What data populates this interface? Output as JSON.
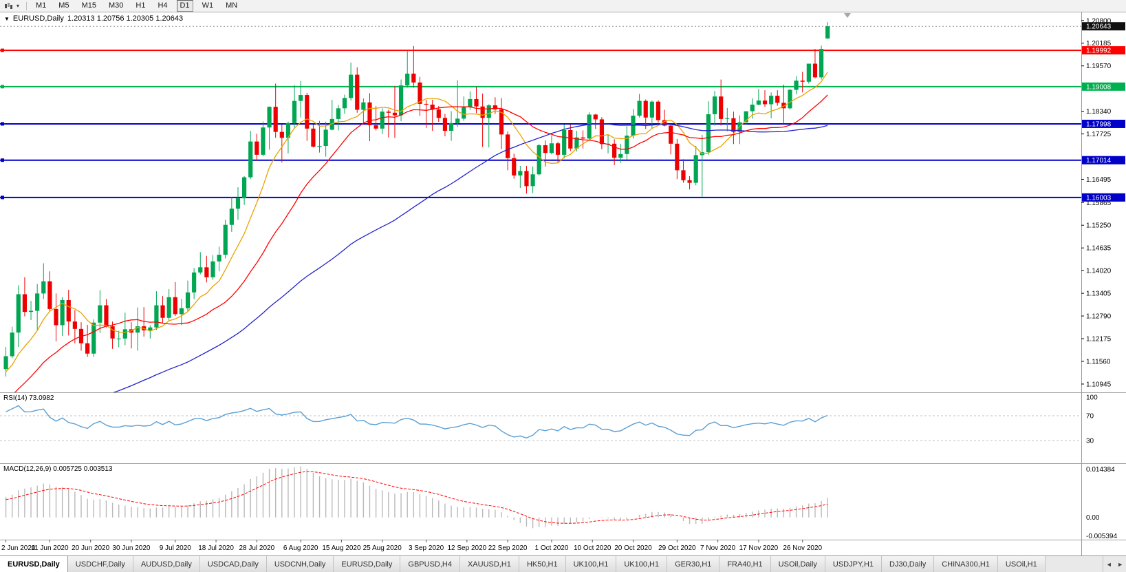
{
  "toolbar": {
    "timeframes": [
      "M1",
      "M5",
      "M15",
      "M30",
      "H1",
      "H4",
      "D1",
      "W1",
      "MN"
    ],
    "active_timeframe": "D1",
    "dropdown_icon": "▾"
  },
  "chart": {
    "menu_icon": "▼",
    "symbol_period": "EURUSD,Daily",
    "ohlc_text": "1.20313 1.20756 1.20305 1.20643",
    "rsi_label": "RSI(14) 73.0982",
    "macd_label": "MACD(12,26,9) 0.005725 0.003513"
  },
  "chart_data": {
    "type": "candlestick",
    "symbol": "EURUSD",
    "timeframe": "Daily",
    "ohlc": {
      "open": 1.20313,
      "high": 1.20756,
      "low": 1.20305,
      "close": 1.20643
    },
    "y_axis": {
      "v_max": 1.2102,
      "v_min": 1.1072,
      "ticks": [
        "1.20800",
        "1.20185",
        "1.19570",
        "1.18340",
        "1.17725",
        "1.16495",
        "1.15865",
        "1.15250",
        "1.14635",
        "1.14020",
        "1.13405",
        "1.12790",
        "1.12175",
        "1.11560",
        "1.10945"
      ]
    },
    "price_lines": [
      {
        "text": "1.20643",
        "value": 1.20643,
        "type": "current-price",
        "bg": "#111111",
        "line_color": "#999999",
        "line_style": "dotted",
        "line_width": 1
      },
      {
        "text": "1.19992",
        "value": 1.19992,
        "type": "horizontal-line",
        "bg": "#ff0000",
        "line_color": "#ff0000",
        "line_style": "solid",
        "line_width": 2
      },
      {
        "text": "1.19008",
        "value": 1.19008,
        "type": "horizontal-line",
        "bg": "#00b050",
        "line_color": "#00b050",
        "line_style": "solid",
        "line_width": 2
      },
      {
        "text": "1.17998",
        "value": 1.17998,
        "type": "horizontal-line",
        "bg": "#0000c8",
        "line_color": "#0000c8",
        "line_style": "solid",
        "line_width": 2
      },
      {
        "text": "1.17014",
        "value": 1.17014,
        "type": "horizontal-line",
        "bg": "#0000c8",
        "line_color": "#0000c8",
        "line_style": "solid",
        "line_width": 2
      },
      {
        "text": "1.16003",
        "value": 1.16003,
        "type": "horizontal-line",
        "bg": "#0000c8",
        "line_color": "#0000c8",
        "line_style": "solid",
        "line_width": 2
      }
    ],
    "x_labels": [
      {
        "text": "2 Jun 2020",
        "slot": 0
      },
      {
        "text": "11 Jun 2020",
        "slot": 7
      },
      {
        "text": "20 Jun 2020",
        "slot": 13.5
      },
      {
        "text": "30 Jun 2020",
        "slot": 20
      },
      {
        "text": "9 Jul 2020",
        "slot": 27
      },
      {
        "text": "18 Jul 2020",
        "slot": 33.5
      },
      {
        "text": "28 Jul 2020",
        "slot": 40
      },
      {
        "text": "6 Aug 2020",
        "slot": 47
      },
      {
        "text": "15 Aug 2020",
        "slot": 53.5
      },
      {
        "text": "25 Aug 2020",
        "slot": 60
      },
      {
        "text": "3 Sep 2020",
        "slot": 67
      },
      {
        "text": "12 Sep 2020",
        "slot": 73.5
      },
      {
        "text": "22 Sep 2020",
        "slot": 80
      },
      {
        "text": "1 Oct 2020",
        "slot": 87
      },
      {
        "text": "10 Oct 2020",
        "slot": 93.5
      },
      {
        "text": "20 Oct 2020",
        "slot": 100
      },
      {
        "text": "29 Oct 2020",
        "slot": 107
      },
      {
        "text": "7 Nov 2020",
        "slot": 113.5
      },
      {
        "text": "17 Nov 2020",
        "slot": 120
      },
      {
        "text": "26 Nov 2020",
        "slot": 127
      }
    ],
    "slot_count": 134,
    "candles": [
      [
        1.1135,
        1.1195,
        1.1115,
        1.117
      ],
      [
        1.117,
        1.125,
        1.1165,
        1.1234
      ],
      [
        1.1234,
        1.1362,
        1.1195,
        1.1338
      ],
      [
        1.1338,
        1.1384,
        1.1278,
        1.129
      ],
      [
        1.129,
        1.132,
        1.1268,
        1.1293
      ],
      [
        1.1293,
        1.1366,
        1.124,
        1.134
      ],
      [
        1.134,
        1.1422,
        1.1325,
        1.1373
      ],
      [
        1.1373,
        1.14,
        1.129,
        1.1298
      ],
      [
        1.1298,
        1.134,
        1.121,
        1.1254
      ],
      [
        1.1254,
        1.133,
        1.1225,
        1.1322
      ],
      [
        1.1322,
        1.135,
        1.1226,
        1.1264
      ],
      [
        1.1264,
        1.1295,
        1.1205,
        1.1244
      ],
      [
        1.1244,
        1.1262,
        1.1185,
        1.1205
      ],
      [
        1.1205,
        1.1255,
        1.1168,
        1.1177
      ],
      [
        1.1177,
        1.127,
        1.1168,
        1.1261
      ],
      [
        1.1261,
        1.1349,
        1.1233,
        1.1308
      ],
      [
        1.1308,
        1.1325,
        1.1248,
        1.1251
      ],
      [
        1.1251,
        1.1264,
        1.119,
        1.1218
      ],
      [
        1.1218,
        1.1239,
        1.1194,
        1.1218
      ],
      [
        1.1218,
        1.1288,
        1.12,
        1.1243
      ],
      [
        1.1243,
        1.1262,
        1.1191,
        1.1234
      ],
      [
        1.1234,
        1.1302,
        1.1185,
        1.1251
      ],
      [
        1.1251,
        1.1303,
        1.1223,
        1.124
      ],
      [
        1.124,
        1.1254,
        1.1218,
        1.1248
      ],
      [
        1.1248,
        1.1346,
        1.1241,
        1.1308
      ],
      [
        1.1308,
        1.1333,
        1.1259,
        1.1274
      ],
      [
        1.1274,
        1.1352,
        1.1266,
        1.133
      ],
      [
        1.133,
        1.1371,
        1.1279,
        1.1284
      ],
      [
        1.1284,
        1.1325,
        1.1254,
        1.13
      ],
      [
        1.13,
        1.1375,
        1.1291,
        1.1343
      ],
      [
        1.1343,
        1.1409,
        1.1325,
        1.1397
      ],
      [
        1.1397,
        1.1452,
        1.1392,
        1.1411
      ],
      [
        1.1411,
        1.1442,
        1.137,
        1.1384
      ],
      [
        1.1384,
        1.1444,
        1.1377,
        1.1427
      ],
      [
        1.1427,
        1.1467,
        1.14,
        1.1445
      ],
      [
        1.1445,
        1.154,
        1.1435,
        1.1526
      ],
      [
        1.1526,
        1.1601,
        1.1507,
        1.157
      ],
      [
        1.157,
        1.1628,
        1.154,
        1.1598
      ],
      [
        1.1598,
        1.1658,
        1.158,
        1.1655
      ],
      [
        1.1655,
        1.1781,
        1.165,
        1.1752
      ],
      [
        1.1752,
        1.1773,
        1.17,
        1.1716
      ],
      [
        1.1716,
        1.1806,
        1.1712,
        1.179
      ],
      [
        1.179,
        1.1847,
        1.173,
        1.1846
      ],
      [
        1.1846,
        1.1909,
        1.1762,
        1.1778
      ],
      [
        1.1778,
        1.1798,
        1.1695,
        1.1762
      ],
      [
        1.1762,
        1.1806,
        1.172,
        1.1802
      ],
      [
        1.1802,
        1.1905,
        1.179,
        1.1862
      ],
      [
        1.1862,
        1.1916,
        1.1817,
        1.1878
      ],
      [
        1.1878,
        1.1884,
        1.1754,
        1.1787
      ],
      [
        1.1787,
        1.1798,
        1.1736,
        1.1738
      ],
      [
        1.1738,
        1.1808,
        1.1722,
        1.174
      ],
      [
        1.174,
        1.1806,
        1.1711,
        1.1784
      ],
      [
        1.1784,
        1.1865,
        1.1782,
        1.1813
      ],
      [
        1.1813,
        1.1851,
        1.1782,
        1.1842
      ],
      [
        1.1842,
        1.1879,
        1.1827,
        1.187
      ],
      [
        1.187,
        1.1966,
        1.1863,
        1.1933
      ],
      [
        1.1933,
        1.1953,
        1.183,
        1.1838
      ],
      [
        1.1838,
        1.1869,
        1.1801,
        1.1858
      ],
      [
        1.1858,
        1.1883,
        1.1753,
        1.1796
      ],
      [
        1.1796,
        1.1848,
        1.1782,
        1.1787
      ],
      [
        1.1787,
        1.1842,
        1.1772,
        1.1833
      ],
      [
        1.1833,
        1.1838,
        1.1763,
        1.183
      ],
      [
        1.183,
        1.1902,
        1.1762,
        1.1823
      ],
      [
        1.1823,
        1.192,
        1.1807,
        1.1904
      ],
      [
        1.1904,
        1.1997,
        1.1898,
        1.1936
      ],
      [
        1.1936,
        1.2011,
        1.1898,
        1.1912
      ],
      [
        1.1912,
        1.1927,
        1.1822,
        1.1854
      ],
      [
        1.1854,
        1.1865,
        1.1789,
        1.1852
      ],
      [
        1.1852,
        1.1865,
        1.1781,
        1.1839
      ],
      [
        1.1839,
        1.1848,
        1.1805,
        1.1816
      ],
      [
        1.1816,
        1.1827,
        1.1766,
        1.1781
      ],
      [
        1.1781,
        1.1834,
        1.1754,
        1.1802
      ],
      [
        1.1802,
        1.1918,
        1.1791,
        1.1814
      ],
      [
        1.1814,
        1.1874,
        1.1808,
        1.1845
      ],
      [
        1.1845,
        1.1888,
        1.1838,
        1.1867
      ],
      [
        1.1867,
        1.19,
        1.1829,
        1.1847
      ],
      [
        1.1847,
        1.1882,
        1.1737,
        1.1816
      ],
      [
        1.1816,
        1.1853,
        1.1736,
        1.185
      ],
      [
        1.185,
        1.1872,
        1.1827,
        1.1839
      ],
      [
        1.1839,
        1.187,
        1.1731,
        1.1771
      ],
      [
        1.1771,
        1.1779,
        1.1674,
        1.1707
      ],
      [
        1.1707,
        1.1719,
        1.1651,
        1.166
      ],
      [
        1.166,
        1.1686,
        1.1626,
        1.1672
      ],
      [
        1.1672,
        1.1686,
        1.1611,
        1.1631
      ],
      [
        1.1631,
        1.1684,
        1.1612,
        1.1663
      ],
      [
        1.1663,
        1.1745,
        1.166,
        1.1742
      ],
      [
        1.1742,
        1.1755,
        1.1684,
        1.1721
      ],
      [
        1.1721,
        1.1769,
        1.1717,
        1.1747
      ],
      [
        1.1747,
        1.1751,
        1.1695,
        1.1716
      ],
      [
        1.1716,
        1.1798,
        1.1706,
        1.1783
      ],
      [
        1.1783,
        1.1798,
        1.1726,
        1.1733
      ],
      [
        1.1733,
        1.1781,
        1.1725,
        1.1763
      ],
      [
        1.1763,
        1.1782,
        1.1733,
        1.176
      ],
      [
        1.176,
        1.1831,
        1.1757,
        1.1825
      ],
      [
        1.1825,
        1.1827,
        1.1786,
        1.1812
      ],
      [
        1.1812,
        1.1818,
        1.1731,
        1.1745
      ],
      [
        1.1745,
        1.1772,
        1.172,
        1.1746
      ],
      [
        1.1746,
        1.1758,
        1.1688,
        1.1708
      ],
      [
        1.1708,
        1.1746,
        1.1694,
        1.1718
      ],
      [
        1.1718,
        1.1794,
        1.1703,
        1.1768
      ],
      [
        1.1768,
        1.184,
        1.176,
        1.1822
      ],
      [
        1.1822,
        1.1881,
        1.1817,
        1.1862
      ],
      [
        1.1862,
        1.1866,
        1.1786,
        1.1817
      ],
      [
        1.1817,
        1.1863,
        1.1786,
        1.186
      ],
      [
        1.186,
        1.1864,
        1.1803,
        1.181
      ],
      [
        1.181,
        1.1838,
        1.1793,
        1.1795
      ],
      [
        1.1795,
        1.18,
        1.1717,
        1.1746
      ],
      [
        1.1746,
        1.1759,
        1.165,
        1.1674
      ],
      [
        1.1674,
        1.1704,
        1.164,
        1.1647
      ],
      [
        1.1647,
        1.1658,
        1.1622,
        1.164
      ],
      [
        1.164,
        1.174,
        1.1633,
        1.1715
      ],
      [
        1.1715,
        1.177,
        1.1603,
        1.1723
      ],
      [
        1.1723,
        1.1861,
        1.1716,
        1.1826
      ],
      [
        1.1826,
        1.1889,
        1.1795,
        1.1874
      ],
      [
        1.1874,
        1.192,
        1.1795,
        1.1813
      ],
      [
        1.1813,
        1.1843,
        1.178,
        1.1815
      ],
      [
        1.1815,
        1.1833,
        1.1745,
        1.1778
      ],
      [
        1.1778,
        1.1823,
        1.1745,
        1.1804
      ],
      [
        1.1804,
        1.1834,
        1.1798,
        1.1834
      ],
      [
        1.1834,
        1.1869,
        1.1814,
        1.1852
      ],
      [
        1.1852,
        1.1894,
        1.185,
        1.1863
      ],
      [
        1.1863,
        1.1891,
        1.1846,
        1.1853
      ],
      [
        1.1853,
        1.1885,
        1.1815,
        1.1876
      ],
      [
        1.1876,
        1.1891,
        1.1849,
        1.1857
      ],
      [
        1.1857,
        1.1906,
        1.18,
        1.1842
      ],
      [
        1.1842,
        1.1895,
        1.1838,
        1.1892
      ],
      [
        1.1892,
        1.1929,
        1.188,
        1.1917
      ],
      [
        1.1917,
        1.1941,
        1.1885,
        1.1914
      ],
      [
        1.1914,
        1.1963,
        1.1909,
        1.1963
      ],
      [
        1.1963,
        1.2003,
        1.1923,
        1.1926
      ],
      [
        1.1926,
        1.2012,
        1.192,
        1.2003
      ],
      [
        1.20313,
        1.20756,
        1.20305,
        1.20643
      ]
    ],
    "prehistory_closes": [
      1.084,
      1.0825,
      1.081,
      1.0835,
      1.0858,
      1.087,
      1.0862,
      1.0845,
      1.0856,
      1.088,
      1.0895,
      1.091,
      1.0886,
      1.087,
      1.0862,
      1.0878,
      1.0902,
      1.0915,
      1.0895,
      1.0872,
      1.086,
      1.0845,
      1.0832,
      1.0855,
      1.088,
      1.0895,
      1.0912,
      1.0934,
      1.095,
      1.0938,
      1.092,
      1.0905,
      1.0892,
      1.0915,
      1.094,
      1.0958,
      1.0972,
      1.0985,
      1.0968,
      1.0952,
      1.0965,
      1.098,
      1.0998,
      1.1015,
      1.1032,
      1.1018,
      1.104,
      1.1065,
      1.1088,
      1.1105,
      1.112,
      1.1138,
      1.115,
      1.1133,
      1.112
    ],
    "moving_averages": [
      {
        "name": "ma-fast-orange",
        "period": 8,
        "color": "#e8a200"
      },
      {
        "name": "ma-mid-red",
        "period": 20,
        "color": "#ff0000"
      },
      {
        "name": "ma-slow-blue",
        "period": 55,
        "color": "#2222cc"
      }
    ],
    "rsi": {
      "period": 14,
      "current": "73.0982",
      "levels": [
        "100",
        "70",
        "30"
      ],
      "color": "#5a9fd4",
      "level_color": "#c0c0c0"
    },
    "macd": {
      "fast": 12,
      "slow": 26,
      "signal": 9,
      "current": "0.005725",
      "signal_current": "0.003513",
      "scale_max": "0.014384",
      "scale_zero": "0.00",
      "scale_min": "-0.005394",
      "hist_color": "#b9b9b9",
      "signal_color": "#ff0000"
    },
    "colors": {
      "bull": "#00a651",
      "bear": "#ee0000",
      "axis_line": "#9a9a9a",
      "separator": "#a0a0a0",
      "text": "#000000",
      "background": "#ffffff",
      "shift_marker": "#a8a8a8"
    }
  },
  "tabs": {
    "active_index": 0,
    "scroll_left": "◄",
    "scroll_right": "►",
    "items": [
      "EURUSD,Daily",
      "USDCHF,Daily",
      "AUDUSD,Daily",
      "USDCAD,Daily",
      "USDCNH,Daily",
      "EURUSD,Daily",
      "GBPUSD,H4",
      "XAUUSD,H1",
      "HK50,H1",
      "UK100,H1",
      "UK100,H1",
      "GER30,H1",
      "FRA40,H1",
      "USOil,Daily",
      "USDJPY,H1",
      "DJ30,Daily",
      "CHINA300,H1",
      "USOil,H1"
    ]
  }
}
